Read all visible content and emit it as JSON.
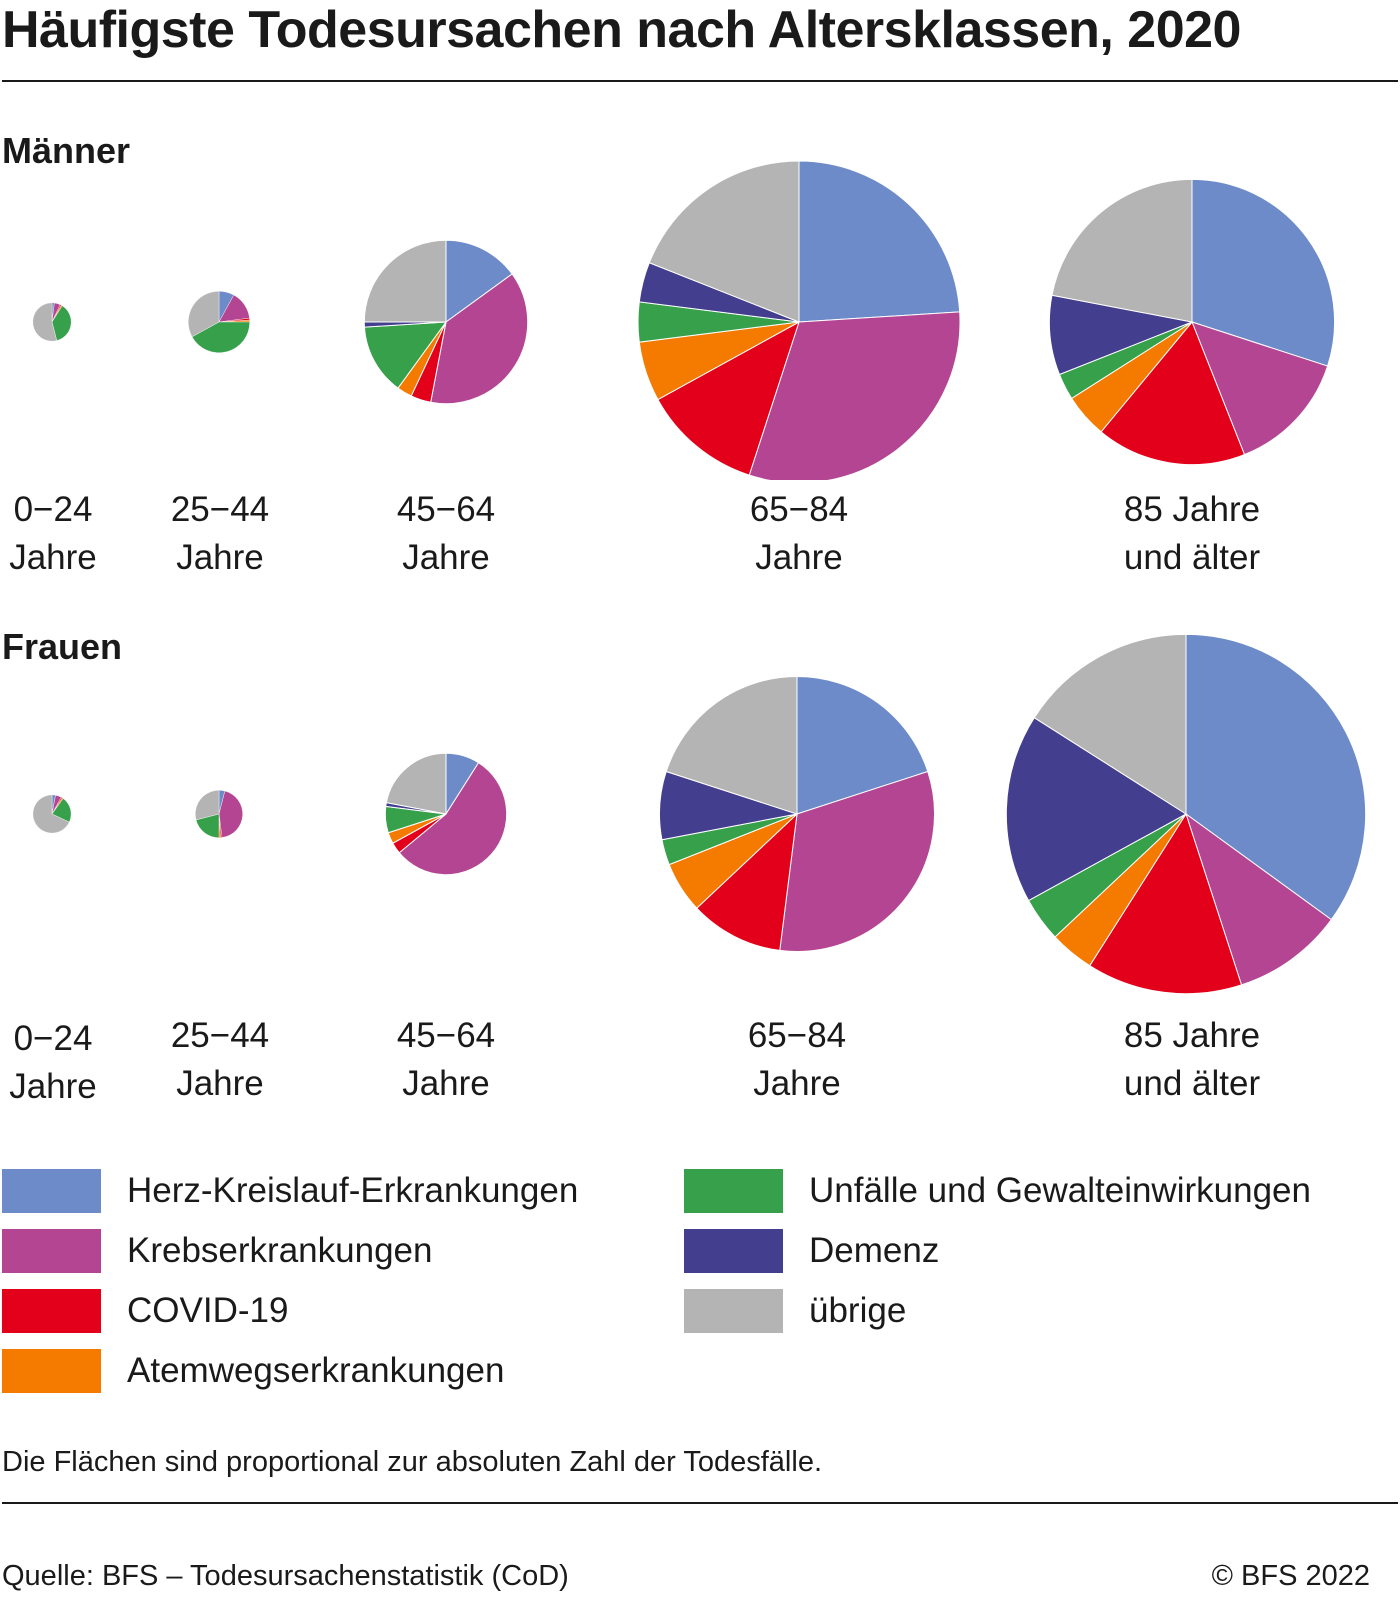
{
  "title": "Häufigste Todesursachen nach Altersklassen, 2020",
  "sections": [
    {
      "label": "Männer"
    },
    {
      "label": "Frauen"
    }
  ],
  "age_groups": [
    {
      "line1": "0−24",
      "line2": "Jahre"
    },
    {
      "line1": "25−44",
      "line2": "Jahre"
    },
    {
      "line1": "45−64",
      "line2": "Jahre"
    },
    {
      "line1": "65−84",
      "line2": "Jahre"
    },
    {
      "line1": "85 Jahre",
      "line2": "und älter"
    }
  ],
  "legend": {
    "left": [
      {
        "label": "Herz-Kreislauf-Erkrankungen",
        "color": "#6e8bc9"
      },
      {
        "label": "Krebserkrankungen",
        "color": "#b44592"
      },
      {
        "label": "COVID-19",
        "color": "#e2001a"
      },
      {
        "label": "Atemwegserkrankungen",
        "color": "#f47b00"
      }
    ],
    "right": [
      {
        "label": "Unfälle und Gewalteinwirkungen",
        "color": "#36a04b"
      },
      {
        "label": "Demenz",
        "color": "#433e8e"
      },
      {
        "label": "übrige",
        "color": "#b4b4b4"
      }
    ]
  },
  "note": "Die Flächen sind proportional zur absoluten Zahl der Todesfälle.",
  "source": "Quelle: BFS – Todesursachenstatistik (CoD)",
  "copyright": "© BFS 2022",
  "chart_data": {
    "type": "pie",
    "title": "Häufigste Todesursachen nach Altersklassen, 2020",
    "note": "Area proportional to absolute number of deaths; relative_size = relative area (65–84 Männer = 1.0); shares in percent",
    "categories": [
      "Herz-Kreislauf-Erkrankungen",
      "Krebserkrankungen",
      "COVID-19",
      "Atemwegserkrankungen",
      "Unfälle und Gewalteinwirkungen",
      "Demenz",
      "übrige"
    ],
    "colors": [
      "#6e8bc9",
      "#b44592",
      "#e2001a",
      "#f47b00",
      "#36a04b",
      "#433e8e",
      "#b4b4b4"
    ],
    "panels": [
      {
        "name": "Männer",
        "pies": [
          {
            "age": "0–24 Jahre",
            "relative_size": 0.0142,
            "values": [
              2,
              5,
              1,
              1,
              37,
              0,
              54
            ]
          },
          {
            "age": "25–44 Jahre",
            "relative_size": 0.0365,
            "values": [
              8,
              15,
              1,
              1,
              42,
              0,
              33
            ]
          },
          {
            "age": "45–64 Jahre",
            "relative_size": 0.2575,
            "values": [
              15,
              38,
              4,
              3,
              14,
              1,
              25
            ]
          },
          {
            "age": "65–84 Jahre",
            "relative_size": 1.0,
            "values": [
              24,
              31,
              12,
              6,
              4,
              4,
              19
            ]
          },
          {
            "age": "85 Jahre und älter",
            "relative_size": 0.7842,
            "values": [
              30,
              14,
              17,
              5,
              3,
              9,
              22
            ]
          }
        ]
      },
      {
        "name": "Frauen",
        "pies": [
          {
            "age": "0–24 Jahre",
            "relative_size": 0.0141,
            "values": [
              3,
              5,
              1,
              1,
              22,
              0,
              68
            ]
          },
          {
            "age": "25–44 Jahre",
            "relative_size": 0.0217,
            "values": [
              4,
              44,
              1,
              1,
              21,
              0,
              29
            ]
          },
          {
            "age": "45–64 Jahre",
            "relative_size": 0.1422,
            "values": [
              9,
              55,
              3,
              3,
              7,
              1,
              22
            ]
          },
          {
            "age": "65–84 Jahre",
            "relative_size": 0.7293,
            "values": [
              20,
              32,
              11,
              6,
              3,
              8,
              20
            ]
          },
          {
            "age": "85 Jahre und älter",
            "relative_size": 1.2453,
            "values": [
              35,
              10,
              14,
              4,
              4,
              17,
              16
            ]
          }
        ]
      }
    ]
  }
}
